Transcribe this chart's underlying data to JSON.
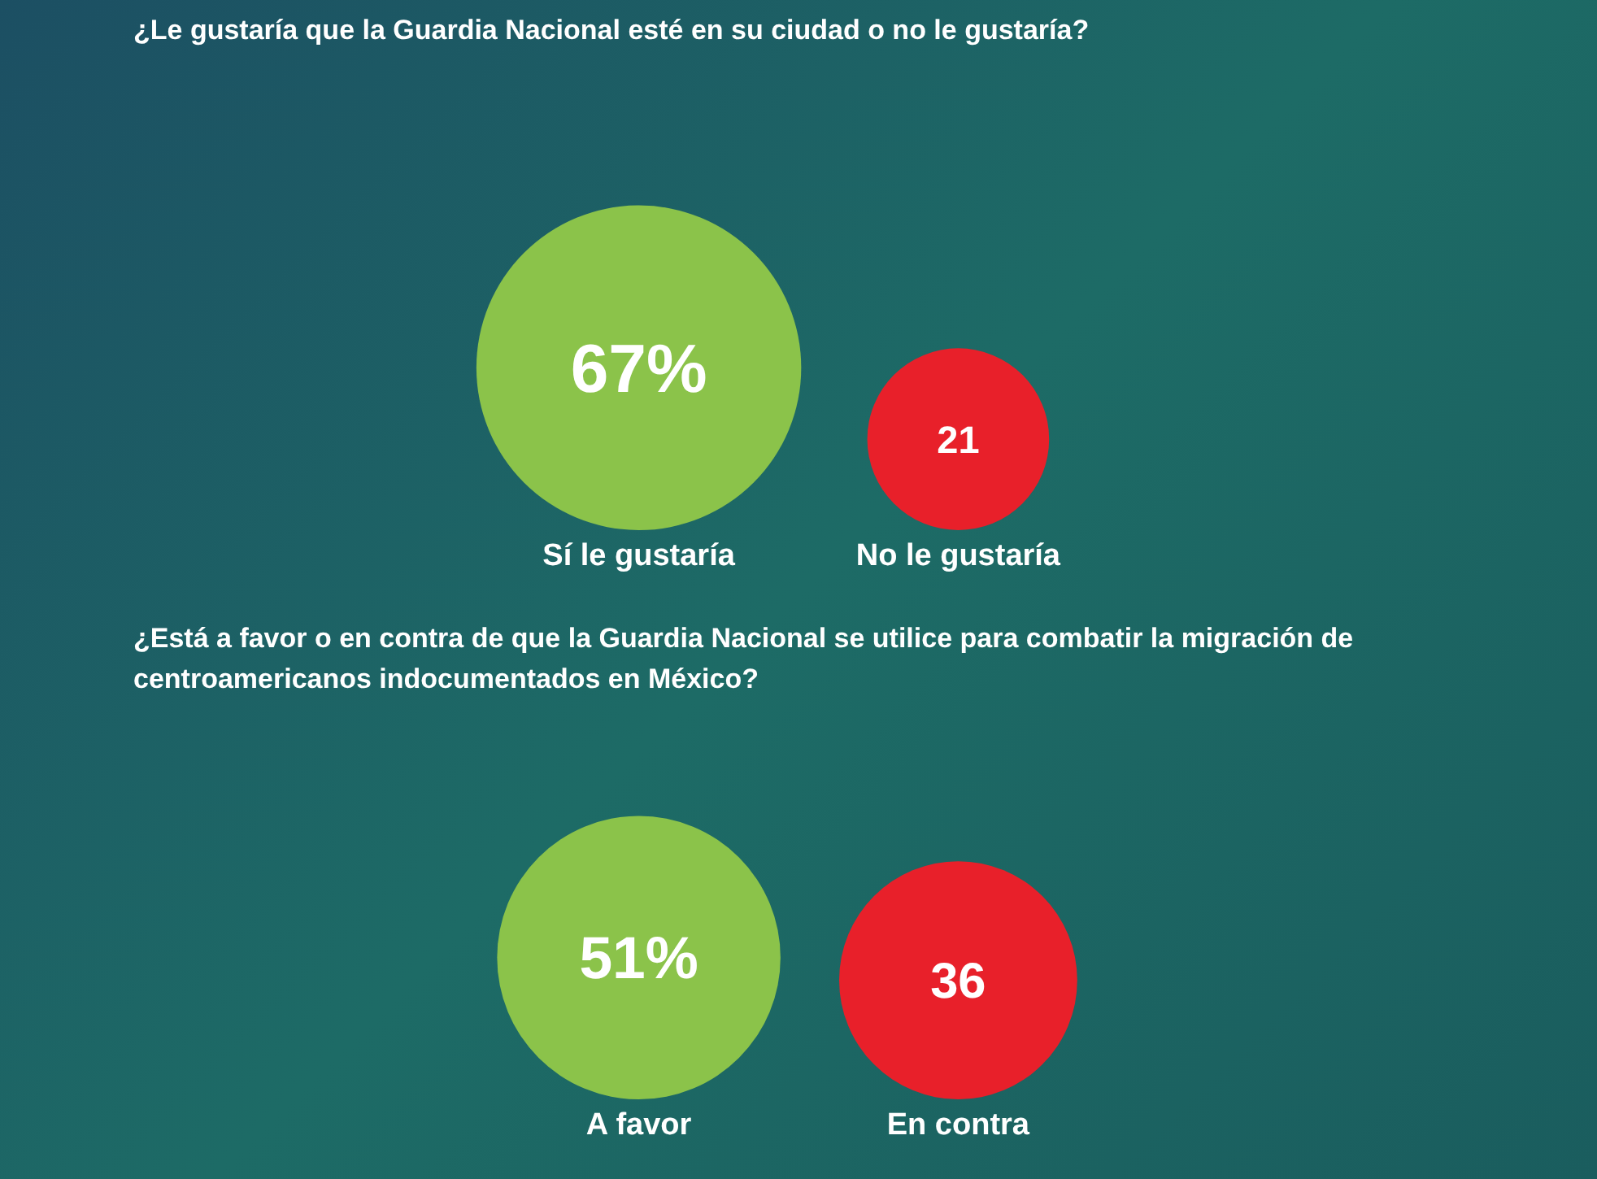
{
  "chart_data": [
    {
      "type": "other",
      "title": "¿Le gustaría que la Guardia Nacional esté en su ciudad o no le gustaría?",
      "categories": [
        "Sí le gustaría",
        "No le gustaría"
      ],
      "values": [
        67,
        21
      ],
      "value_labels": [
        "67%",
        "21"
      ],
      "colors": [
        "#8bc34a",
        "#e8202a"
      ]
    },
    {
      "type": "other",
      "title": "¿Está a favor o en contra de que la Guardia Nacional se utilice para combatir la migración de centroamericanos indocumentados en México?",
      "categories": [
        "A favor",
        "En contra"
      ],
      "values": [
        51,
        36
      ],
      "value_labels": [
        "51%",
        "36"
      ],
      "colors": [
        "#8bc34a",
        "#e8202a"
      ]
    }
  ]
}
